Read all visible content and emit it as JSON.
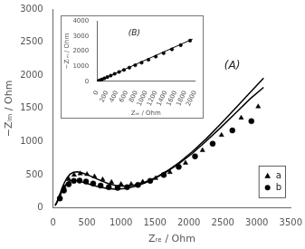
{
  "chart_data": [
    {
      "type": "scatter",
      "xlabel": "Zᵣₑ / Ohm",
      "ylabel": "−Zᵢₘ / Ohm",
      "xlim": [
        0,
        3500
      ],
      "ylim": [
        0,
        3000
      ],
      "xticks": [
        0,
        500,
        1000,
        1500,
        2000,
        2500,
        3000,
        3500
      ],
      "yticks": [
        0,
        500,
        1000,
        1500,
        2000,
        2500,
        3000
      ],
      "grid": false,
      "legend": "lower right",
      "annotations": [
        "(A)"
      ],
      "series": [
        {
          "type": "line",
          "color": "black",
          "x": [
            30,
            50,
            75,
            100,
            130,
            165,
            205,
            250,
            300,
            360,
            430,
            510,
            600,
            700,
            810,
            930,
            1060,
            1200,
            1350,
            1510,
            1680,
            1860,
            2050,
            2250,
            2460,
            2680,
            2900,
            3100
          ],
          "values": [
            40,
            80,
            140,
            210,
            295,
            380,
            455,
            510,
            540,
            545,
            530,
            500,
            460,
            415,
            370,
            340,
            330,
            350,
            390,
            460,
            560,
            690,
            850,
            1040,
            1260,
            1500,
            1740,
            1960
          ]
        },
        {
          "type": "line",
          "color": "black",
          "x": [
            30,
            50,
            75,
            100,
            130,
            165,
            200,
            245,
            295,
            355,
            425,
            505,
            595,
            695,
            805,
            925,
            1055,
            1195,
            1345,
            1505,
            1675,
            1855,
            2045,
            2245,
            2455,
            2675,
            2905,
            3100
          ],
          "values": [
            35,
            70,
            120,
            180,
            250,
            315,
            370,
            405,
            420,
            415,
            395,
            370,
            340,
            315,
            295,
            285,
            295,
            325,
            375,
            450,
            550,
            670,
            820,
            1000,
            1200,
            1420,
            1650,
            1820
          ]
        },
        {
          "name": "a",
          "type": "scatter",
          "color": "black",
          "marker": "triangle",
          "x": [
            100,
            160,
            230,
            310,
            400,
            500,
            610,
            730,
            860,
            1000,
            1150,
            1320,
            1510,
            1720,
            1950,
            2200,
            2480,
            2770,
            3020
          ],
          "values": [
            175,
            320,
            435,
            500,
            520,
            510,
            475,
            430,
            390,
            360,
            360,
            395,
            450,
            540,
            680,
            870,
            1100,
            1360,
            1530
          ]
        },
        {
          "name": "b",
          "type": "scatter",
          "color": "black",
          "marker": "circle",
          "x": [
            100,
            160,
            230,
            305,
            390,
            485,
            590,
            700,
            820,
            950,
            1090,
            1250,
            1430,
            1630,
            1850,
            2090,
            2350,
            2640,
            2920
          ],
          "values": [
            145,
            265,
            360,
            410,
            415,
            400,
            370,
            340,
            315,
            305,
            315,
            350,
            410,
            500,
            620,
            780,
            970,
            1170,
            1310
          ]
        }
      ]
    },
    {
      "type": "scatter",
      "xlabel": "Zᵣₑ / Ohm",
      "ylabel": "−Zᵢₘ / Ohm",
      "xlim": [
        0,
        2000
      ],
      "ylim": [
        0,
        4000
      ],
      "xticks": [
        0,
        200,
        400,
        600,
        800,
        1000,
        1200,
        1400,
        1600,
        1800,
        2000
      ],
      "yticks": [
        0,
        1000,
        2000,
        3000,
        4000
      ],
      "grid": false,
      "annotations": [
        "(B)"
      ],
      "series": [
        {
          "type": "scatter",
          "color": "black",
          "marker": "circle",
          "x": [
            30,
            60,
            100,
            150,
            210,
            280,
            360,
            450,
            550,
            660,
            780,
            910,
            1050,
            1200,
            1360,
            1530,
            1710,
            1900
          ],
          "values": [
            35,
            75,
            130,
            200,
            285,
            385,
            500,
            625,
            760,
            910,
            1070,
            1240,
            1430,
            1640,
            1870,
            2120,
            2400,
            2700
          ]
        },
        {
          "type": "line",
          "color": "black",
          "x": [
            0,
            50,
            1950
          ],
          "values": [
            0,
            60,
            2800
          ]
        }
      ]
    }
  ]
}
